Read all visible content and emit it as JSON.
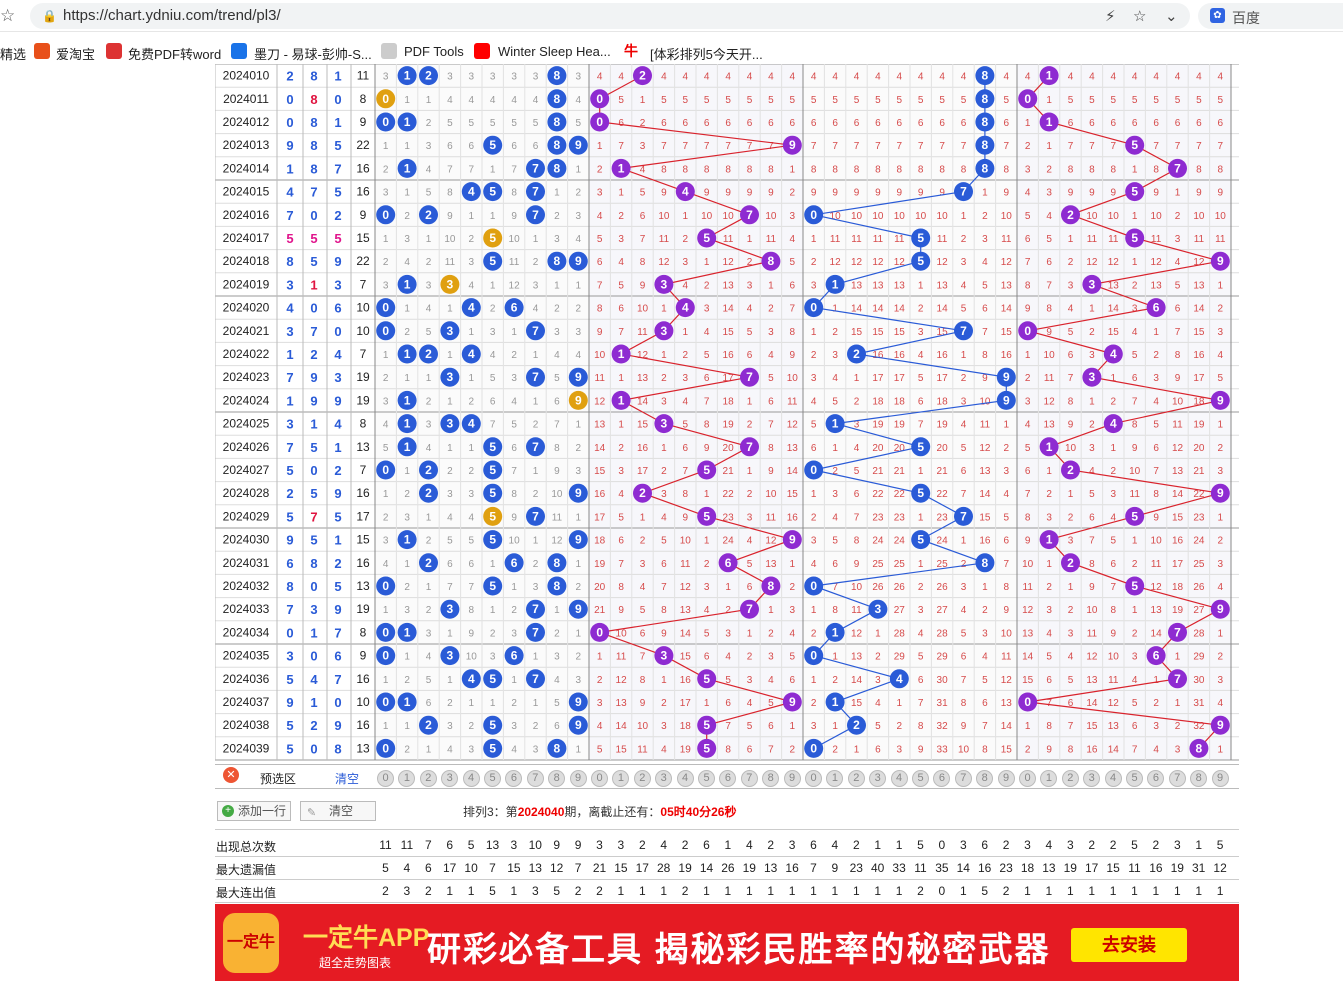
{
  "browser": {
    "url": "https://chart.ydniu.com/trend/pl3/",
    "search_engine": "百度",
    "bookmarks": [
      "精选",
      "爱淘宝",
      "免费PDF转word",
      "墨刀 - 易球-彭帅-S...",
      "PDF Tools",
      "Winter Sleep Hea...",
      "[体彩排列5今天开..."
    ]
  },
  "rows": [
    {
      "date": "2024010",
      "digits": [
        "2",
        "8",
        "1"
      ],
      "sum": "11"
    },
    {
      "date": "2024011",
      "digits": [
        "0",
        "8",
        "0"
      ],
      "sum": "8"
    },
    {
      "date": "2024012",
      "digits": [
        "0",
        "8",
        "1"
      ],
      "sum": "9"
    },
    {
      "date": "2024013",
      "digits": [
        "9",
        "8",
        "5"
      ],
      "sum": "22"
    },
    {
      "date": "2024014",
      "digits": [
        "1",
        "8",
        "7"
      ],
      "sum": "16"
    },
    {
      "date": "2024015",
      "digits": [
        "4",
        "7",
        "5"
      ],
      "sum": "16"
    },
    {
      "date": "2024016",
      "digits": [
        "7",
        "0",
        "2"
      ],
      "sum": "9"
    },
    {
      "date": "2024017",
      "digits": [
        "5",
        "5",
        "5"
      ],
      "sum": "15"
    },
    {
      "date": "2024018",
      "digits": [
        "8",
        "5",
        "9"
      ],
      "sum": "22"
    },
    {
      "date": "2024019",
      "digits": [
        "3",
        "1",
        "3"
      ],
      "sum": "7"
    },
    {
      "date": "2024020",
      "digits": [
        "4",
        "0",
        "6"
      ],
      "sum": "10"
    },
    {
      "date": "2024021",
      "digits": [
        "3",
        "7",
        "0"
      ],
      "sum": "10"
    },
    {
      "date": "2024022",
      "digits": [
        "1",
        "2",
        "4"
      ],
      "sum": "7"
    },
    {
      "date": "2024023",
      "digits": [
        "7",
        "9",
        "3"
      ],
      "sum": "19"
    },
    {
      "date": "2024024",
      "digits": [
        "1",
        "9",
        "9"
      ],
      "sum": "19"
    },
    {
      "date": "2024025",
      "digits": [
        "3",
        "1",
        "4"
      ],
      "sum": "8"
    },
    {
      "date": "2024026",
      "digits": [
        "7",
        "5",
        "1"
      ],
      "sum": "13"
    },
    {
      "date": "2024027",
      "digits": [
        "5",
        "0",
        "2"
      ],
      "sum": "7"
    },
    {
      "date": "2024028",
      "digits": [
        "2",
        "5",
        "9"
      ],
      "sum": "16"
    },
    {
      "date": "2024029",
      "digits": [
        "5",
        "7",
        "5"
      ],
      "sum": "17"
    },
    {
      "date": "2024030",
      "digits": [
        "9",
        "5",
        "1"
      ],
      "sum": "15"
    },
    {
      "date": "2024031",
      "digits": [
        "6",
        "8",
        "2"
      ],
      "sum": "16"
    },
    {
      "date": "2024032",
      "digits": [
        "8",
        "0",
        "5"
      ],
      "sum": "13"
    },
    {
      "date": "2024033",
      "digits": [
        "7",
        "3",
        "9"
      ],
      "sum": "19"
    },
    {
      "date": "2024034",
      "digits": [
        "0",
        "1",
        "7"
      ],
      "sum": "8"
    },
    {
      "date": "2024035",
      "digits": [
        "3",
        "0",
        "6"
      ],
      "sum": "9"
    },
    {
      "date": "2024036",
      "digits": [
        "5",
        "4",
        "7"
      ],
      "sum": "16"
    },
    {
      "date": "2024037",
      "digits": [
        "9",
        "1",
        "0"
      ],
      "sum": "10"
    },
    {
      "date": "2024038",
      "digits": [
        "5",
        "2",
        "9"
      ],
      "sum": "16"
    },
    {
      "date": "2024039",
      "digits": [
        "5",
        "0",
        "8"
      ],
      "sum": "13"
    }
  ],
  "preselect": {
    "label": "预选区",
    "clear": "清空",
    "options": [
      "0",
      "1",
      "2",
      "3",
      "4",
      "5",
      "6",
      "7",
      "8",
      "9"
    ]
  },
  "actions": {
    "add_row": "添加一行",
    "clear": "清空"
  },
  "countdown": {
    "prefix": "排列3：第",
    "issue": "2024040",
    "middle": "期，离截止还有：",
    "time": "05时40分26秒"
  },
  "stats": [
    {
      "label": "出现总次数",
      "values": [
        "11",
        "11",
        "7",
        "6",
        "5",
        "13",
        "3",
        "10",
        "9",
        "9",
        "3",
        "3",
        "2",
        "4",
        "2",
        "6",
        "1",
        "4",
        "2",
        "3",
        "6",
        "4",
        "2",
        "1",
        "1",
        "5",
        "0",
        "3",
        "6",
        "2",
        "3",
        "4",
        "3",
        "2",
        "2",
        "5",
        "2",
        "3",
        "1",
        "5"
      ]
    },
    {
      "label": "最大遗漏值",
      "values": [
        "5",
        "4",
        "6",
        "17",
        "10",
        "7",
        "15",
        "13",
        "12",
        "7",
        "21",
        "15",
        "17",
        "28",
        "19",
        "14",
        "26",
        "19",
        "13",
        "16",
        "7",
        "9",
        "23",
        "40",
        "33",
        "11",
        "35",
        "14",
        "16",
        "23",
        "18",
        "13",
        "19",
        "17",
        "15",
        "11",
        "16",
        "19",
        "31",
        "12"
      ]
    },
    {
      "label": "最大连出值",
      "values": [
        "2",
        "3",
        "2",
        "1",
        "1",
        "5",
        "1",
        "3",
        "5",
        "2",
        "2",
        "1",
        "1",
        "1",
        "2",
        "1",
        "1",
        "1",
        "1",
        "1",
        "1",
        "1",
        "1",
        "1",
        "1",
        "2",
        "0",
        "1",
        "5",
        "2",
        "1",
        "1",
        "1",
        "1",
        "1",
        "1",
        "1",
        "1",
        "1",
        "1"
      ]
    }
  ],
  "banner": {
    "logo": "一定牛",
    "app": "一定牛APP",
    "sub": "超全走势图表",
    "slogan": "研彩必备工具  揭秘彩民胜率的秘密武器",
    "install": "去安装"
  },
  "colors": {
    "blue": "#2a5bd7",
    "purple": "#8e2bd1",
    "orange": "#e0a010",
    "red_line": "#d9232d",
    "blue_line": "#2a5bd7"
  }
}
